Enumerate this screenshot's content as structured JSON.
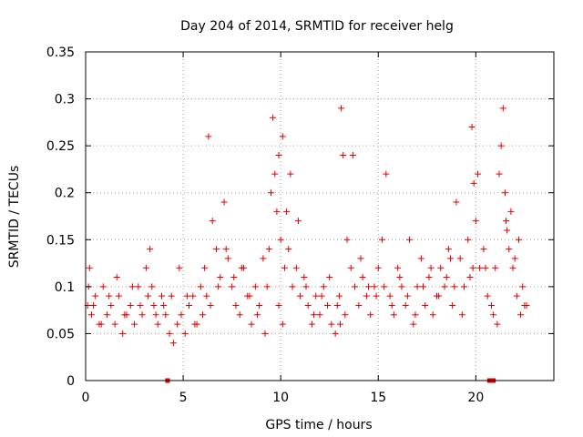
{
  "chart_data": {
    "type": "scatter",
    "title": "Day 204 of 2014, SRMTID for receiver helg",
    "xlabel": "GPS time / hours",
    "ylabel": "SRMTID / TECUs",
    "xlim": [
      0,
      24
    ],
    "ylim": [
      0,
      0.35
    ],
    "grid": true,
    "marker": "+",
    "color": "#e00000",
    "x_ticks": [
      0,
      5,
      10,
      15,
      20
    ],
    "x_tick_labels": [
      "0",
      "5",
      "10",
      "15",
      "20"
    ],
    "y_ticks": [
      0,
      0.05,
      0.1,
      0.15,
      0.2,
      0.25,
      0.3,
      0.35
    ],
    "y_tick_labels": [
      "0",
      "0.05",
      "0.1",
      "0.15",
      "0.2",
      "0.25",
      "0.3",
      "0.35"
    ],
    "series": [
      {
        "name": "SRMTID",
        "x": [
          0.1,
          0.2,
          0.3,
          0.5,
          0.7,
          0.9,
          1.1,
          1.3,
          1.5,
          1.7,
          1.9,
          2.1,
          2.3,
          2.5,
          2.7,
          2.9,
          3.1,
          3.3,
          3.5,
          3.7,
          3.9,
          4.1,
          4.3,
          4.5,
          4.7,
          4.9,
          5.1,
          5.3,
          5.5,
          5.7,
          5.9,
          6.1,
          6.3,
          6.5,
          6.7,
          6.9,
          7.1,
          7.3,
          7.5,
          7.7,
          7.9,
          8.1,
          8.3,
          8.5,
          8.7,
          8.9,
          9.1,
          9.3,
          9.5,
          9.6,
          9.7,
          9.8,
          9.9,
          10.0,
          10.1,
          10.2,
          10.3,
          10.4,
          10.6,
          10.8,
          11.0,
          11.2,
          11.4,
          11.6,
          11.8,
          12.0,
          12.2,
          12.4,
          12.6,
          12.8,
          13.0,
          13.1,
          13.2,
          13.4,
          13.6,
          13.8,
          14.0,
          14.2,
          14.4,
          14.6,
          14.8,
          15.0,
          15.2,
          15.4,
          15.6,
          15.8,
          16.0,
          16.2,
          16.4,
          16.6,
          16.8,
          17.0,
          17.2,
          17.4,
          17.6,
          17.8,
          18.0,
          18.2,
          18.4,
          18.6,
          18.8,
          19.0,
          19.2,
          19.4,
          19.6,
          19.8,
          19.9,
          20.0,
          20.2,
          20.4,
          20.6,
          20.8,
          21.0,
          21.2,
          21.4,
          21.5,
          21.6,
          21.8,
          22.0,
          22.2,
          22.4,
          22.6,
          0.15,
          0.4,
          0.8,
          1.2,
          1.6,
          2.0,
          2.4,
          2.8,
          3.2,
          3.4,
          3.6,
          4.0,
          4.4,
          4.8,
          5.2,
          5.6,
          6.0,
          6.2,
          6.4,
          6.8,
          7.2,
          7.6,
          8.0,
          8.4,
          8.8,
          9.2,
          9.4,
          9.9,
          10.1,
          10.5,
          10.9,
          11.3,
          11.7,
          12.1,
          12.5,
          12.9,
          13.05,
          13.3,
          13.7,
          14.1,
          14.5,
          14.9,
          15.3,
          15.7,
          16.1,
          16.5,
          16.9,
          17.3,
          17.7,
          18.1,
          18.5,
          18.7,
          18.9,
          19.3,
          19.7,
          19.85,
          20.1,
          20.5,
          20.9,
          21.1,
          21.3,
          21.55,
          21.7,
          21.9,
          22.1,
          22.3,
          22.5
        ],
        "y": [
          0.08,
          0.12,
          0.07,
          0.09,
          0.06,
          0.1,
          0.07,
          0.08,
          0.06,
          0.09,
          0.05,
          0.07,
          0.08,
          0.06,
          0.1,
          0.07,
          0.12,
          0.14,
          0.08,
          0.06,
          0.09,
          0.07,
          0.05,
          0.04,
          0.06,
          0.07,
          0.05,
          0.08,
          0.09,
          0.06,
          0.1,
          0.12,
          0.26,
          0.17,
          0.14,
          0.11,
          0.19,
          0.13,
          0.1,
          0.08,
          0.07,
          0.12,
          0.09,
          0.06,
          0.1,
          0.08,
          0.13,
          0.1,
          0.2,
          0.28,
          0.22,
          0.18,
          0.24,
          0.15,
          0.26,
          0.12,
          0.18,
          0.14,
          0.1,
          0.12,
          0.09,
          0.11,
          0.08,
          0.06,
          0.09,
          0.07,
          0.1,
          0.08,
          0.06,
          0.05,
          0.09,
          0.29,
          0.24,
          0.15,
          0.12,
          0.1,
          0.08,
          0.11,
          0.09,
          0.07,
          0.1,
          0.12,
          0.15,
          0.22,
          0.09,
          0.07,
          0.12,
          0.1,
          0.08,
          0.15,
          0.06,
          0.1,
          0.13,
          0.08,
          0.11,
          0.07,
          0.09,
          0.12,
          0.1,
          0.14,
          0.08,
          0.19,
          0.13,
          0.1,
          0.15,
          0.27,
          0.21,
          0.17,
          0.12,
          0.14,
          0.09,
          0.08,
          0.12,
          0.22,
          0.29,
          0.2,
          0.16,
          0.18,
          0.13,
          0.15,
          0.1,
          0.08,
          0.1,
          0.08,
          0.06,
          0.09,
          0.11,
          0.07,
          0.1,
          0.08,
          0.09,
          0.1,
          0.07,
          0.08,
          0.09,
          0.12,
          0.09,
          0.06,
          0.07,
          0.09,
          0.08,
          0.1,
          0.14,
          0.11,
          0.12,
          0.09,
          0.07,
          0.05,
          0.14,
          0.08,
          0.06,
          0.22,
          0.17,
          0.1,
          0.07,
          0.09,
          0.11,
          0.08,
          0.06,
          0.07,
          0.24,
          0.13,
          0.1,
          0.09,
          0.1,
          0.08,
          0.11,
          0.09,
          0.07,
          0.1,
          0.12,
          0.09,
          0.11,
          0.13,
          0.1,
          0.07,
          0.11,
          0.12,
          0.22,
          0.12,
          0.07,
          0.06,
          0.25,
          0.17,
          0.14,
          0.12,
          0.09,
          0.07,
          0.08
        ],
        "flagged_x": [
          4.2,
          20.7,
          20.9
        ],
        "flagged_y": [
          0,
          0,
          0
        ]
      }
    ]
  }
}
